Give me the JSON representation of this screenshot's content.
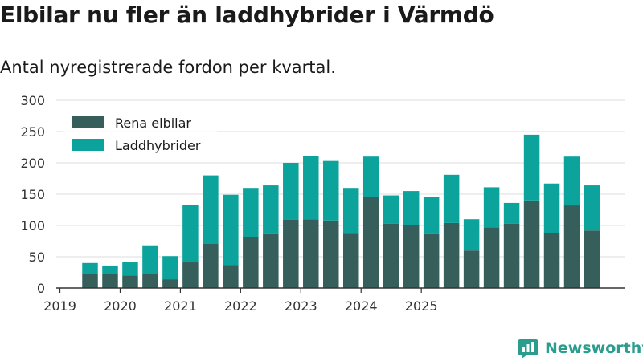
{
  "title": "Elbilar nu fler än laddhybrider i Värmdö",
  "subtitle": "Antal nyregistrerade fordon per kvartal.",
  "brand": {
    "name": "Newsworthy",
    "icon": "newsworthy-logo-icon"
  },
  "colors": {
    "series1": "#365e5b",
    "series2": "#0ba39b",
    "grid": "#dddddd",
    "axis": "#333333"
  },
  "chart_data": {
    "type": "bar",
    "stacked": true,
    "title": "Elbilar nu fler än laddhybrider i Värmdö",
    "subtitle": "Antal nyregistrerade fordon per kvartal.",
    "xlabel": "",
    "ylabel": "",
    "ylim": [
      0,
      300
    ],
    "yticks": [
      0,
      50,
      100,
      150,
      200,
      250,
      300
    ],
    "xtick_labels": [
      "2019",
      "2020",
      "2021",
      "2022",
      "2023",
      "2024",
      "2025"
    ],
    "legend_position": "top-left",
    "grid": true,
    "categories": [
      "2019 Q2",
      "2019 Q3",
      "2019 Q4",
      "2020 Q1",
      "2020 Q2",
      "2020 Q3",
      "2020 Q4",
      "2021 Q1",
      "2021 Q2",
      "2021 Q3",
      "2021 Q4",
      "2022 Q1",
      "2022 Q2",
      "2022 Q3",
      "2022 Q4",
      "2023 Q1",
      "2023 Q2",
      "2023 Q3",
      "2023 Q4",
      "2024 Q1",
      "2024 Q2",
      "2024 Q3",
      "2024 Q4",
      "2025 Q1",
      "2025 Q2",
      "2025 Q3"
    ],
    "series": [
      {
        "name": "Rena elbilar",
        "values": [
          22,
          23,
          20,
          22,
          14,
          41,
          71,
          37,
          82,
          86,
          109,
          110,
          108,
          87,
          146,
          103,
          100,
          86,
          104,
          60,
          97,
          103,
          140,
          88,
          132,
          92
        ]
      },
      {
        "name": "Laddhybrider",
        "values": [
          18,
          13,
          21,
          45,
          37,
          92,
          109,
          112,
          78,
          78,
          91,
          101,
          95,
          73,
          64,
          45,
          55,
          60,
          77,
          50,
          64,
          33,
          105,
          79,
          78,
          72
        ]
      }
    ]
  }
}
